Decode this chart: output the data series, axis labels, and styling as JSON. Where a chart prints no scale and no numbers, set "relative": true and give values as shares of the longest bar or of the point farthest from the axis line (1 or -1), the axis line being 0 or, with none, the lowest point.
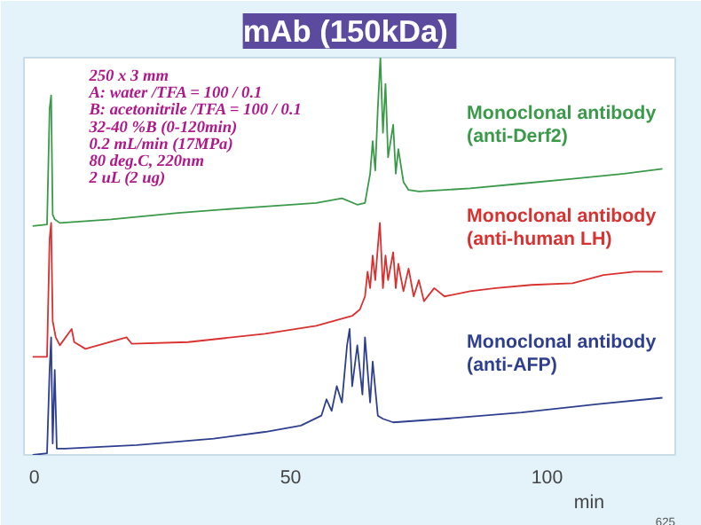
{
  "chart_data": {
    "type": "line",
    "title": "mAb  (150kDa)",
    "xlabel": "min",
    "relative": true,
    "xlim": [
      -2,
      125
    ],
    "xticks": [
      0,
      50,
      100
    ],
    "grid": false,
    "marker": "none",
    "line_style": "solid",
    "annotations": [
      "250 x 3 mm",
      "A: water /TFA = 100 / 0.1",
      "B: acetonitrile /TFA = 100 / 0.1",
      "32-40 %B (0-120min)",
      "0.2 mL/min (17MPa)",
      "80 deg.C, 220nm",
      "2 uL (2 ug)",
      "625"
    ],
    "series": [
      {
        "name": "Monoclonal antibody\n(anti-Derf2)",
        "color": "#3a9a4a",
        "x": [
          -0.3,
          2.5,
          3.0,
          3.3,
          3.6,
          4.0,
          5,
          15,
          28,
          40,
          55,
          60,
          63,
          64.5,
          65.5,
          66,
          66.5,
          67,
          67.5,
          68,
          68.5,
          69,
          70,
          70.5,
          71,
          72,
          73,
          75,
          85,
          95,
          105,
          115,
          122.5
        ],
        "values": [
          0.576,
          0.58,
          0.872,
          0.905,
          0.605,
          0.593,
          0.584,
          0.593,
          0.609,
          0.621,
          0.634,
          0.646,
          0.63,
          0.634,
          0.708,
          0.79,
          0.716,
          0.872,
          1,
          0.811,
          0.934,
          0.749,
          0.831,
          0.708,
          0.77,
          0.687,
          0.667,
          0.663,
          0.671,
          0.683,
          0.695,
          0.708,
          0.72
        ]
      },
      {
        "name": "Monoclonal antibody\n(anti-human LH)",
        "color": "#d93030",
        "x": [
          -0.3,
          2.5,
          3.0,
          3.3,
          3.6,
          4.2,
          5,
          7.3,
          7.8,
          10,
          18,
          19,
          30,
          45,
          55,
          62,
          63.5,
          64.5,
          65,
          65.5,
          66,
          66.5,
          67,
          67.4,
          68,
          68.5,
          69,
          70,
          70.5,
          71,
          72,
          73,
          74,
          75,
          76,
          78,
          80,
          85,
          90,
          97,
          105,
          111,
          117,
          122.5
        ],
        "values": [
          0.247,
          0.247,
          0.543,
          0.584,
          0.337,
          0.296,
          0.276,
          0.317,
          0.284,
          0.267,
          0.296,
          0.28,
          0.284,
          0.305,
          0.325,
          0.35,
          0.366,
          0.399,
          0.461,
          0.42,
          0.502,
          0.44,
          0.523,
          0.584,
          0.42,
          0.502,
          0.44,
          0.51,
          0.42,
          0.481,
          0.412,
          0.469,
          0.399,
          0.44,
          0.387,
          0.42,
          0.399,
          0.412,
          0.42,
          0.428,
          0.432,
          0.453,
          0.461,
          0.461
        ]
      },
      {
        "name": "Monoclonal antibody\n(anti-AFP)",
        "color": "#2e3f8f",
        "x": [
          -0.3,
          2.5,
          3.0,
          3.3,
          3.6,
          4.0,
          4.4,
          6,
          20,
          35,
          45,
          52,
          56,
          57,
          58,
          59,
          60,
          61,
          61.5,
          62,
          63,
          64,
          64.5,
          65.5,
          66,
          67,
          68,
          70,
          80,
          95,
          110,
          122.5
        ],
        "values": [
          0,
          0.004,
          0.214,
          0.296,
          0.029,
          0.214,
          0.016,
          0.016,
          0.025,
          0.041,
          0.058,
          0.074,
          0.099,
          0.14,
          0.111,
          0.173,
          0.132,
          0.276,
          0.317,
          0.173,
          0.276,
          0.152,
          0.296,
          0.132,
          0.235,
          0.099,
          0.091,
          0.082,
          0.091,
          0.107,
          0.128,
          0.144
        ]
      }
    ]
  }
}
